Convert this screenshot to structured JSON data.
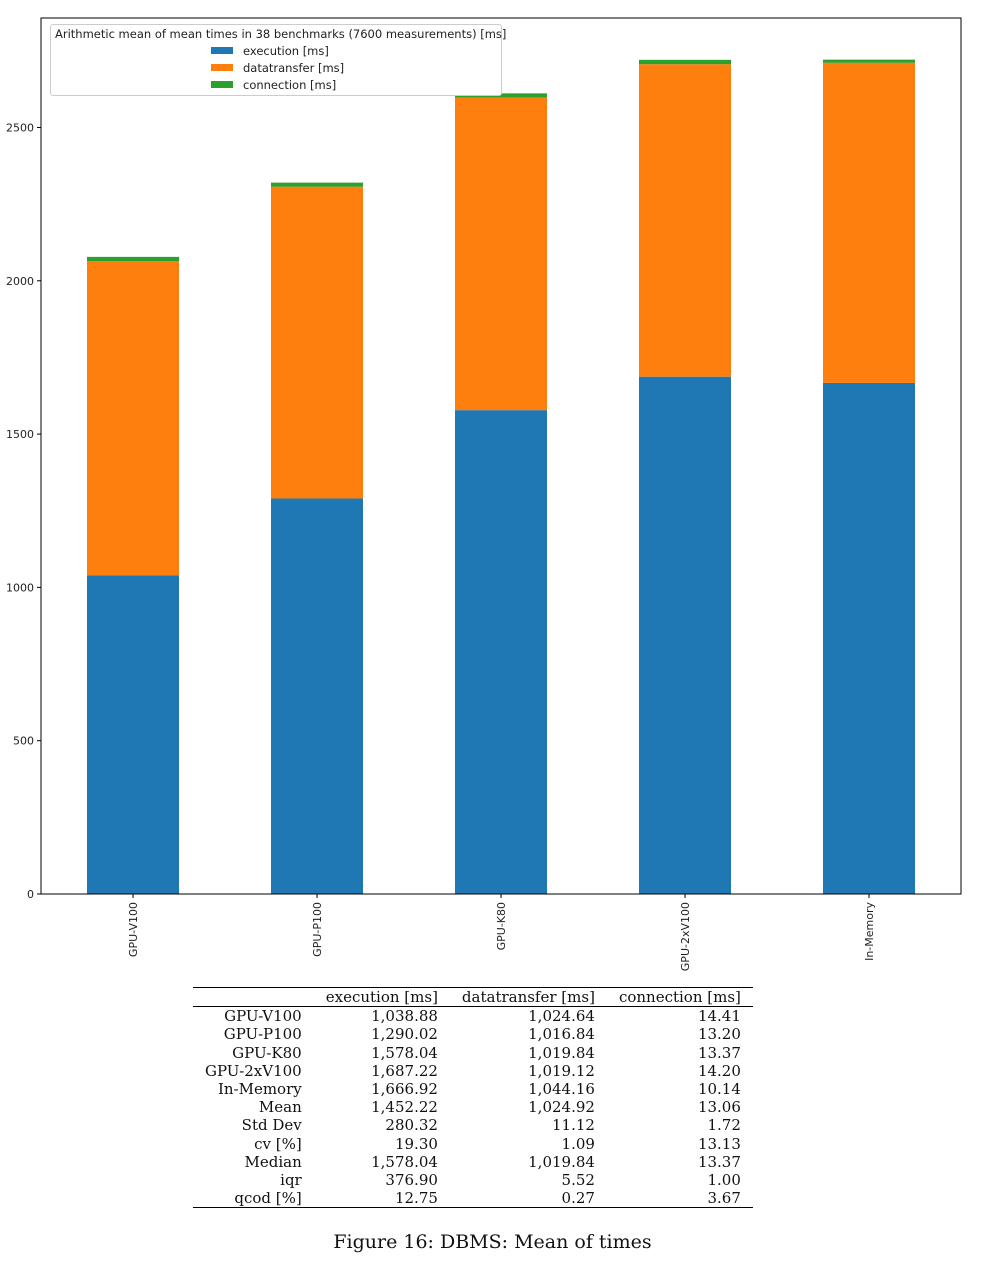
{
  "chart_data": {
    "type": "bar",
    "stacked": true,
    "categories": [
      "GPU-V100",
      "GPU-P100",
      "GPU-K80",
      "GPU-2xV100",
      "In-Memory"
    ],
    "series": [
      {
        "name": "execution [ms]",
        "color": "#1f77b4",
        "values": [
          1038.88,
          1290.02,
          1578.04,
          1687.22,
          1666.92
        ]
      },
      {
        "name": "datatransfer [ms]",
        "color": "#ff7f0e",
        "values": [
          1024.64,
          1016.84,
          1019.84,
          1019.12,
          1044.16
        ]
      },
      {
        "name": "connection [ms]",
        "color": "#2ca02c",
        "values": [
          14.41,
          13.2,
          13.37,
          14.2,
          10.14
        ]
      }
    ],
    "legend_title": "Arithmetic mean of mean times in 38 benchmarks (7600 measurements) [ms]",
    "legend_position": "top-left",
    "yticks": [
      0,
      500,
      1000,
      1500,
      2000,
      2500
    ],
    "ylim": [
      0,
      2857
    ],
    "xlabel": "",
    "ylabel": "",
    "grid": false
  },
  "table": {
    "headers": [
      "",
      "execution [ms]",
      "datatransfer [ms]",
      "connection [ms]"
    ],
    "rows": [
      [
        "GPU-V100",
        "1,038.88",
        "1,024.64",
        "14.41"
      ],
      [
        "GPU-P100",
        "1,290.02",
        "1,016.84",
        "13.20"
      ],
      [
        "GPU-K80",
        "1,578.04",
        "1,019.84",
        "13.37"
      ],
      [
        "GPU-2xV100",
        "1,687.22",
        "1,019.12",
        "14.20"
      ],
      [
        "In-Memory",
        "1,666.92",
        "1,044.16",
        "10.14"
      ],
      [
        "Mean",
        "1,452.22",
        "1,024.92",
        "13.06"
      ],
      [
        "Std Dev",
        "280.32",
        "11.12",
        "1.72"
      ],
      [
        "cv [%]",
        "19.30",
        "1.09",
        "13.13"
      ],
      [
        "Median",
        "1,578.04",
        "1,019.84",
        "13.37"
      ],
      [
        "iqr",
        "376.90",
        "5.52",
        "1.00"
      ],
      [
        "qcod [%]",
        "12.75",
        "0.27",
        "3.67"
      ]
    ]
  },
  "caption": "Figure 16: DBMS: Mean of times"
}
